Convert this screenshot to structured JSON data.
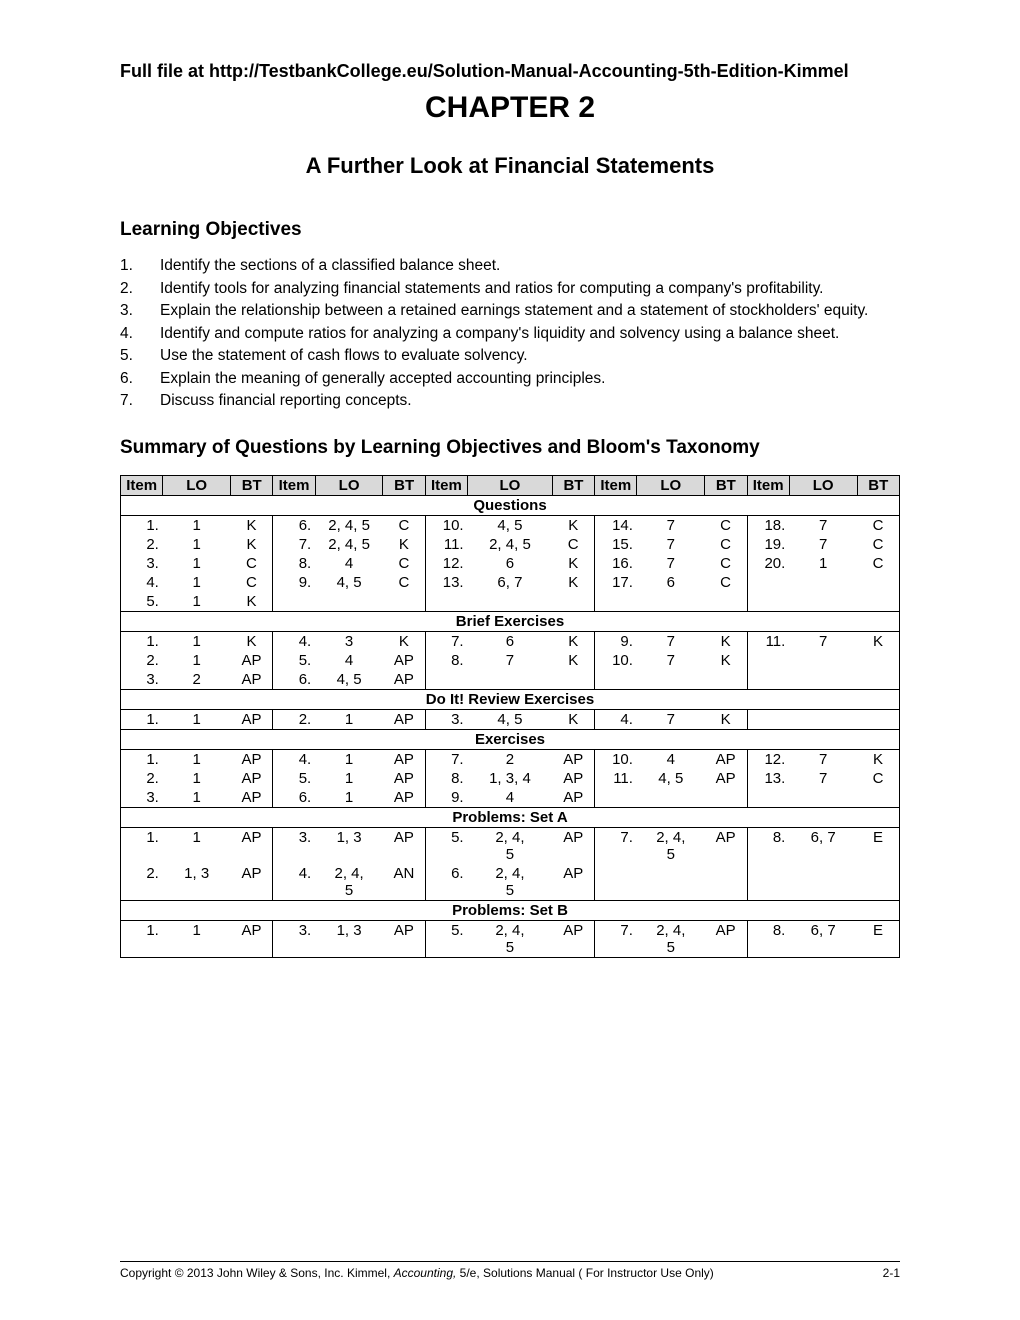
{
  "source_link": "Full file at http://TestbankCollege.eu/Solution-Manual-Accounting-5th-Edition-Kimmel",
  "chapter_title": "CHAPTER 2",
  "chapter_subtitle": "A Further Look at Financial Statements",
  "objectives_heading": "Learning Objectives",
  "objectives": [
    {
      "n": "1.",
      "text": "Identify the sections of a classified balance sheet."
    },
    {
      "n": "2.",
      "text": "Identify tools for analyzing financial statements and ratios for computing a company's profitability."
    },
    {
      "n": "3.",
      "text": "Explain the relationship between a retained earnings statement and a statement of stockholders' equity."
    },
    {
      "n": "4.",
      "text": "Identify and compute ratios for analyzing a company's liquidity and solvency using a balance sheet."
    },
    {
      "n": "5.",
      "text": "Use the statement of cash flows to evaluate solvency."
    },
    {
      "n": "6.",
      "text": "Explain the meaning of generally accepted accounting principles."
    },
    {
      "n": "7.",
      "text": "Discuss financial reporting concepts."
    }
  ],
  "summary_heading": "Summary of Questions by Learning Objectives and Bloom's Taxonomy",
  "headers": [
    "Item",
    "LO",
    "BT",
    "Item",
    "LO",
    "BT",
    "Item",
    "LO",
    "BT",
    "Item",
    "LO",
    "BT",
    "Item",
    "LO",
    "BT"
  ],
  "sections": [
    {
      "title": "Questions",
      "rows": [
        [
          "1.",
          "1",
          "K",
          "6.",
          "2, 4, 5",
          "C",
          "10.",
          "4, 5",
          "K",
          "14.",
          "7",
          "C",
          "18.",
          "7",
          "C"
        ],
        [
          "2.",
          "1",
          "K",
          "7.",
          "2, 4, 5",
          "K",
          "11.",
          "2, 4, 5",
          "C",
          "15.",
          "7",
          "C",
          "19.",
          "7",
          "C"
        ],
        [
          "3.",
          "1",
          "C",
          "8.",
          "4",
          "C",
          "12.",
          "6",
          "K",
          "16.",
          "7",
          "C",
          "20.",
          "1",
          "C"
        ],
        [
          "4.",
          "1",
          "C",
          "9.",
          "4, 5",
          "C",
          "13.",
          "6, 7",
          "K",
          "17.",
          "6",
          "C",
          "",
          "",
          ""
        ],
        [
          "5.",
          "1",
          "K",
          "",
          "",
          "",
          "",
          "",
          "",
          "",
          "",
          "",
          "",
          "",
          ""
        ]
      ]
    },
    {
      "title": "Brief Exercises",
      "rows": [
        [
          "1.",
          "1",
          "K",
          "4.",
          "3",
          "K",
          "7.",
          "6",
          "K",
          "9.",
          "7",
          "K",
          "11.",
          "7",
          "K"
        ],
        [
          "2.",
          "1",
          "AP",
          "5.",
          "4",
          "AP",
          "8.",
          "7",
          "K",
          "10.",
          "7",
          "K",
          "",
          "",
          ""
        ],
        [
          "3.",
          "2",
          "AP",
          "6.",
          "4, 5",
          "AP",
          "",
          "",
          "",
          "",
          "",
          "",
          "",
          "",
          ""
        ]
      ]
    },
    {
      "title": "Do It! Review Exercises",
      "rows": [
        [
          "1.",
          "1",
          "AP",
          "2.",
          "1",
          "AP",
          "3.",
          "4, 5",
          "K",
          "4.",
          "7",
          "K",
          "",
          "",
          ""
        ]
      ]
    },
    {
      "title": "Exercises",
      "rows": [
        [
          "1.",
          "1",
          "AP",
          "4.",
          "1",
          "AP",
          "7.",
          "2",
          "AP",
          "10.",
          "4",
          "AP",
          "12.",
          "7",
          "K"
        ],
        [
          "2.",
          "1",
          "AP",
          "5.",
          "1",
          "AP",
          "8.",
          "1, 3, 4",
          "AP",
          "11.",
          "4, 5",
          "AP",
          "13.",
          "7",
          "C"
        ],
        [
          "3.",
          "1",
          "AP",
          "6.",
          "1",
          "AP",
          "9.",
          "4",
          "AP",
          "",
          "",
          "",
          "",
          "",
          ""
        ]
      ]
    },
    {
      "title": "Problems: Set A",
      "rows": [
        [
          "1.",
          "1",
          "AP",
          "3.",
          "1, 3",
          "AP",
          "5.",
          "2, 4, 5",
          "AP",
          "7.",
          "2, 4, 5",
          "AP",
          "8.",
          "6, 7",
          "E"
        ],
        [
          "2.",
          "1, 3",
          "AP",
          "4.",
          "2, 4, 5",
          "AN",
          "6.",
          "2, 4, 5",
          "AP",
          "",
          "",
          "",
          "",
          "",
          ""
        ]
      ]
    },
    {
      "title": "Problems: Set B",
      "rows": [
        [
          "1.",
          "1",
          "AP",
          "3.",
          "1, 3",
          "AP",
          "5.",
          "2, 4, 5",
          "AP",
          "7.",
          "2, 4, 5",
          "AP",
          "8.",
          "6, 7",
          "E"
        ]
      ]
    }
  ],
  "footer": {
    "copyright": "Copyright © 2013 John Wiley & Sons, Inc.   Kimmel, ",
    "book": "Accounting,",
    "rest": " 5/e, Solutions Manual    ( For Instructor Use Only)",
    "page": "2-1"
  }
}
